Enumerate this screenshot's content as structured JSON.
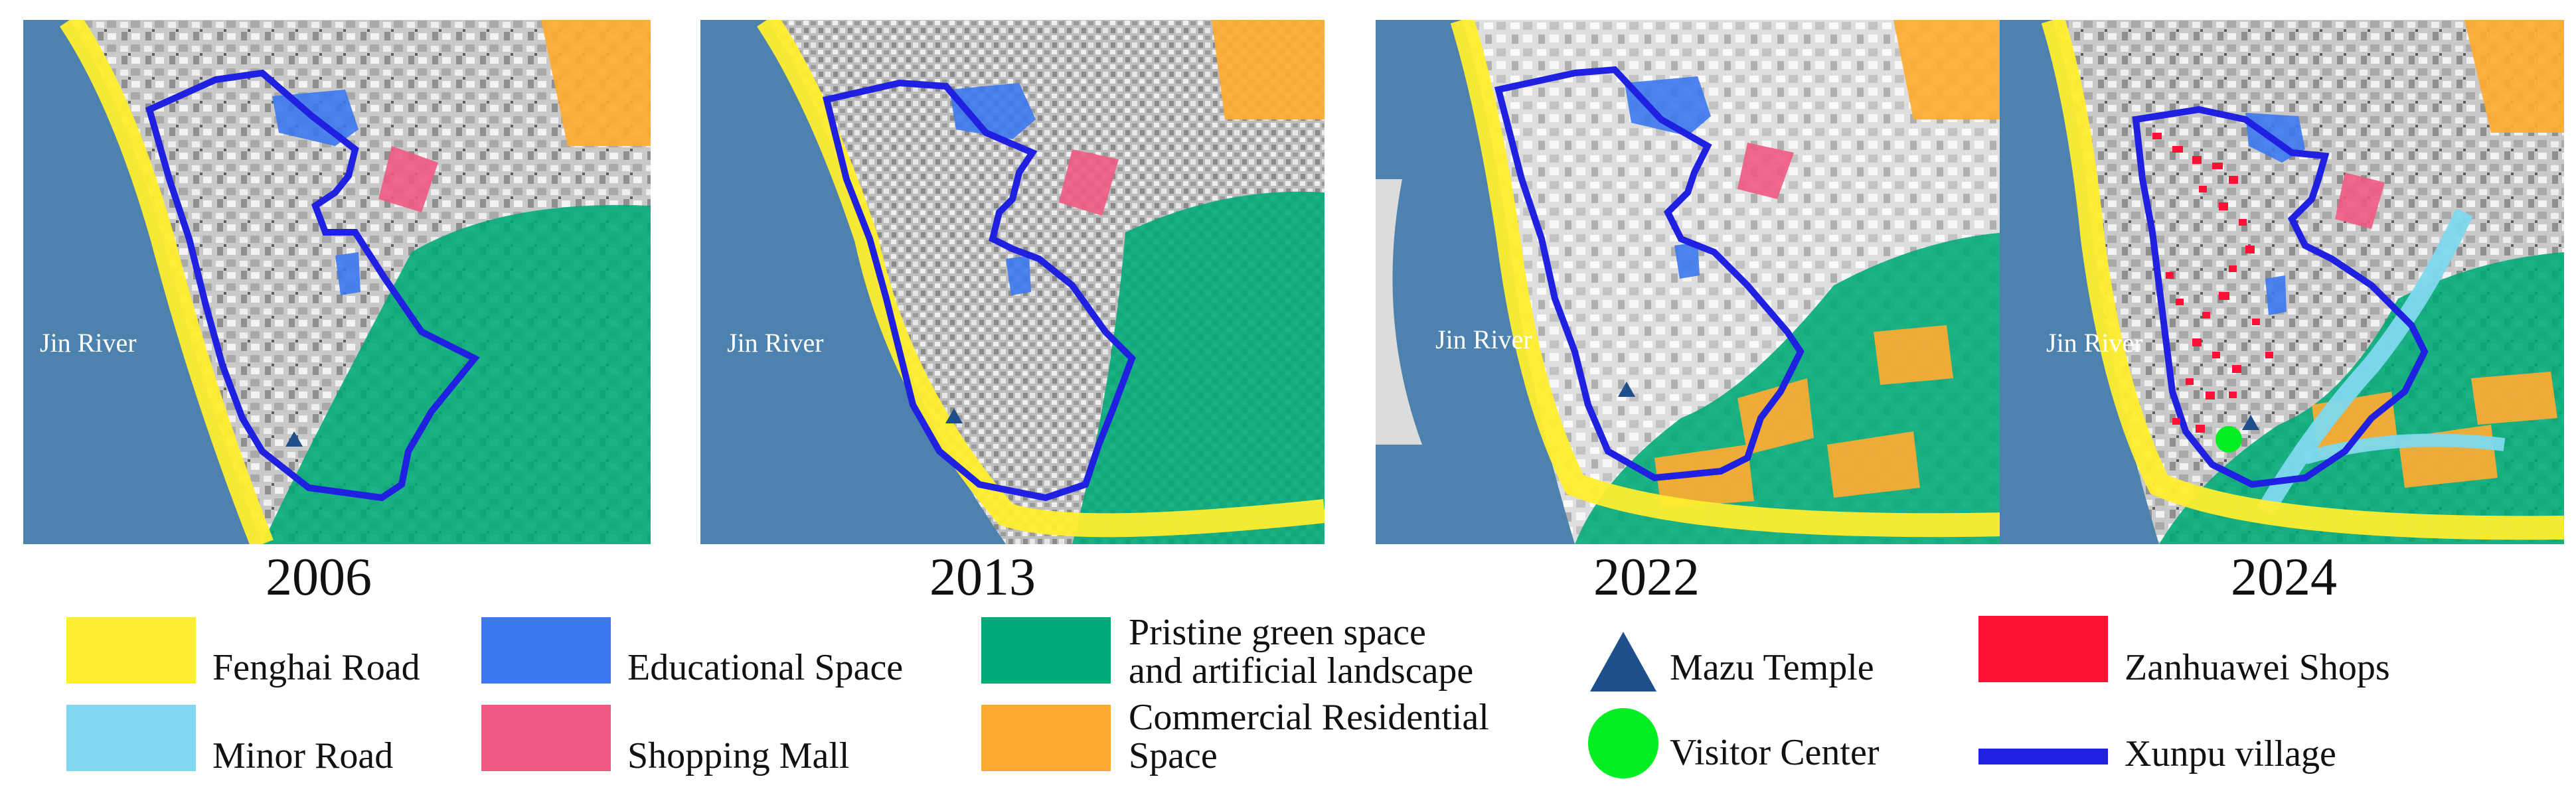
{
  "river_label": "Jin River",
  "panels": [
    {
      "year": "2006"
    },
    {
      "year": "2013"
    },
    {
      "year": "2022"
    },
    {
      "year": "2024"
    }
  ],
  "legend": {
    "fenghai_road": "Fenghai Road",
    "minor_road": "Minor Road",
    "educational_space": "Educational Space",
    "shopping_mall": "Shopping Mall",
    "green_space_line1": "Pristine green space",
    "green_space_line2": "and artificial landscape",
    "commercial_line1": "Commercial Residential",
    "commercial_line2": "Space",
    "mazu_temple": "Mazu Temple",
    "visitor_center": "Visitor Center",
    "zanhuawei_shops": "Zanhuawei Shops",
    "xunpu_village": "Xunpu village"
  },
  "colors": {
    "fenghai_road": "#ffee2e",
    "minor_road": "#7fd8ee",
    "educational_space": "#3c78f0",
    "shopping_mall": "#f05a82",
    "green_space": "#00aa78",
    "commercial": "#ffaa32",
    "mazu_temple": "#1e4f8c",
    "visitor_center": "#00ee22",
    "zanhuawei_shops": "#ff1035",
    "xunpu_village": "#2020e0"
  }
}
